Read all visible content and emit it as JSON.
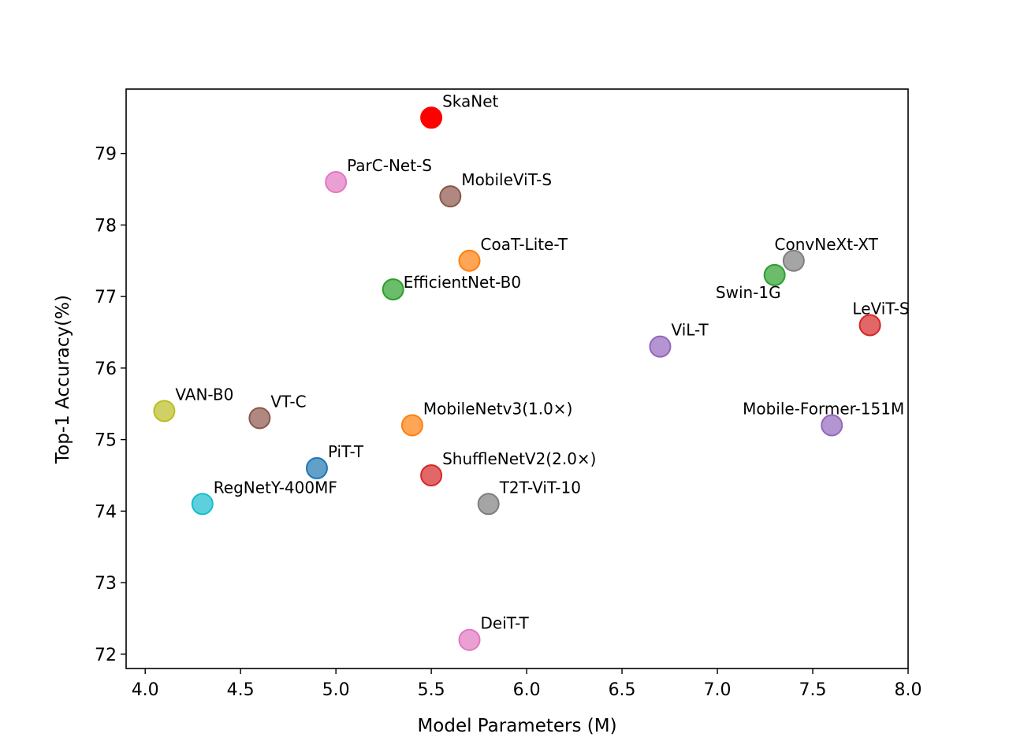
{
  "chart_data": {
    "type": "scatter",
    "title": "",
    "xlabel": "Model Parameters (M)",
    "ylabel": "Top-1 Accuracy(%)",
    "xlim": [
      3.9,
      8.0
    ],
    "ylim": [
      71.8,
      79.9
    ],
    "xticks": [
      "4.0",
      "4.5",
      "5.0",
      "5.5",
      "6.0",
      "6.5",
      "7.0",
      "7.5",
      "8.0"
    ],
    "yticks": [
      "72",
      "73",
      "74",
      "75",
      "76",
      "77",
      "78",
      "79"
    ],
    "grid": false,
    "legend": "none",
    "points": [
      {
        "label": "SkaNet",
        "x": 5.5,
        "y": 79.5,
        "color": "#ff0000",
        "label_pos": "right"
      },
      {
        "label": "ParC-Net-S",
        "x": 5.0,
        "y": 78.6,
        "color": "#e377c2",
        "label_pos": "right"
      },
      {
        "label": "MobileViT-S",
        "x": 5.6,
        "y": 78.4,
        "color": "#8c564b",
        "label_pos": "right"
      },
      {
        "label": "CoaT-Lite-T",
        "x": 5.7,
        "y": 77.5,
        "color": "#ff7f0e",
        "label_pos": "right"
      },
      {
        "label": "EfficientNet-B0",
        "x": 5.3,
        "y": 77.1,
        "color": "#2ca02c",
        "label_pos": "right-inline"
      },
      {
        "label": "ConvNeXt-XT",
        "x": 7.4,
        "y": 77.5,
        "color": "#7f7f7f",
        "label_pos": "above"
      },
      {
        "label": "Swin-1G",
        "x": 7.3,
        "y": 77.3,
        "color": "#2ca02c",
        "label_pos": "below-left"
      },
      {
        "label": "LeViT-S",
        "x": 7.8,
        "y": 76.6,
        "color": "#d62728",
        "label_pos": "above"
      },
      {
        "label": "ViL-T",
        "x": 6.7,
        "y": 76.3,
        "color": "#9467bd",
        "label_pos": "right"
      },
      {
        "label": "VAN-B0",
        "x": 4.1,
        "y": 75.4,
        "color": "#bcbd22",
        "label_pos": "right"
      },
      {
        "label": "VT-C",
        "x": 4.6,
        "y": 75.3,
        "color": "#8c564b",
        "label_pos": "right"
      },
      {
        "label": "MobileNetv3(1.0×)",
        "x": 5.4,
        "y": 75.2,
        "color": "#ff7f0e",
        "label_pos": "right"
      },
      {
        "label": "Mobile-Former-151M",
        "x": 7.6,
        "y": 75.2,
        "color": "#9467bd",
        "label_pos": "above"
      },
      {
        "label": "PiT-T",
        "x": 4.9,
        "y": 74.6,
        "color": "#1f77b4",
        "label_pos": "right"
      },
      {
        "label": "ShuffleNetV2(2.0×)",
        "x": 5.5,
        "y": 74.5,
        "color": "#d62728",
        "label_pos": "right"
      },
      {
        "label": "RegNetY-400MF",
        "x": 4.3,
        "y": 74.1,
        "color": "#17becf",
        "label_pos": "right"
      },
      {
        "label": "T2T-ViT-10",
        "x": 5.8,
        "y": 74.1,
        "color": "#7f7f7f",
        "label_pos": "right"
      },
      {
        "label": "DeiT-T",
        "x": 5.7,
        "y": 72.2,
        "color": "#e377c2",
        "label_pos": "right"
      }
    ]
  }
}
